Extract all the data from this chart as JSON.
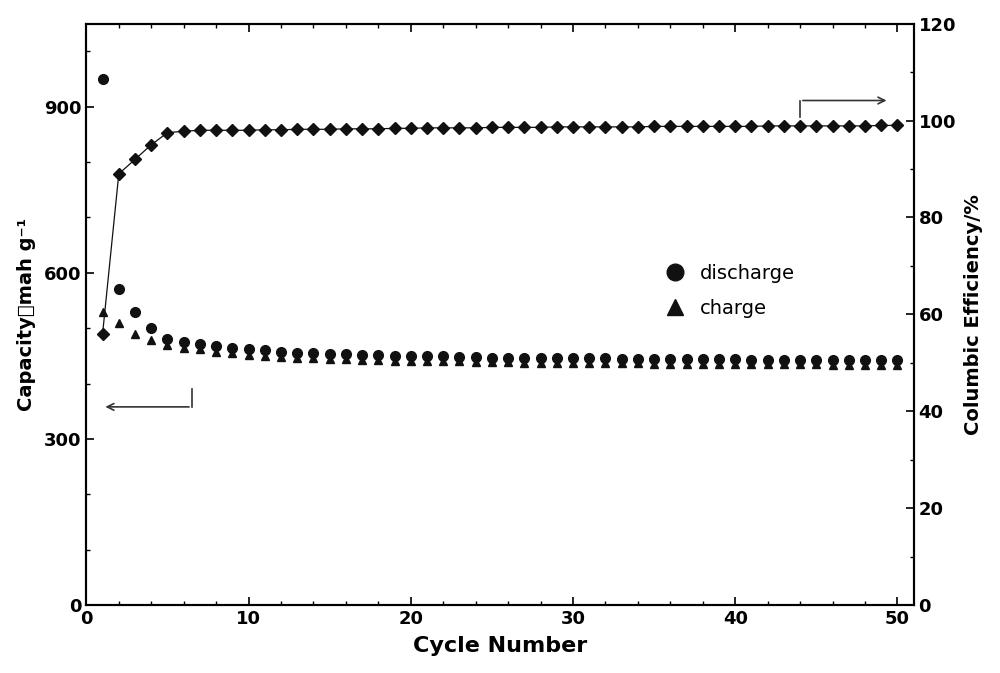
{
  "xlabel": "Cycle Number",
  "ylabel_left": "Capacity(mah g⁻¹",
  "ylabel_right": "Columbic Efficiency/%",
  "xlim": [
    0,
    51
  ],
  "ylim_left": [
    0,
    1050
  ],
  "ylim_right": [
    0,
    120
  ],
  "xticks": [
    0,
    10,
    20,
    30,
    40,
    50
  ],
  "yticks_left": [
    0,
    300,
    600,
    900
  ],
  "yticks_right": [
    0,
    20,
    40,
    60,
    80,
    100,
    120
  ],
  "discharge_cycles": [
    1,
    2,
    3,
    4,
    5,
    6,
    7,
    8,
    9,
    10,
    11,
    12,
    13,
    14,
    15,
    16,
    17,
    18,
    19,
    20,
    21,
    22,
    23,
    24,
    25,
    26,
    27,
    28,
    29,
    30,
    31,
    32,
    33,
    34,
    35,
    36,
    37,
    38,
    39,
    40,
    41,
    42,
    43,
    44,
    45,
    46,
    47,
    48,
    49,
    50
  ],
  "discharge_capacity": [
    950,
    570,
    530,
    500,
    480,
    475,
    472,
    468,
    465,
    462,
    460,
    458,
    456,
    455,
    454,
    453,
    452,
    451,
    450,
    450,
    449,
    449,
    448,
    448,
    447,
    447,
    447,
    447,
    446,
    446,
    446,
    446,
    445,
    445,
    445,
    445,
    444,
    444,
    444,
    444,
    443,
    443,
    443,
    443,
    443,
    442,
    442,
    442,
    442,
    442
  ],
  "charge_cycles": [
    1,
    2,
    3,
    4,
    5,
    6,
    7,
    8,
    9,
    10,
    11,
    12,
    13,
    14,
    15,
    16,
    17,
    18,
    19,
    20,
    21,
    22,
    23,
    24,
    25,
    26,
    27,
    28,
    29,
    30,
    31,
    32,
    33,
    34,
    35,
    36,
    37,
    38,
    39,
    40,
    41,
    42,
    43,
    44,
    45,
    46,
    47,
    48,
    49,
    50
  ],
  "charge_capacity": [
    530,
    510,
    490,
    478,
    470,
    465,
    462,
    458,
    455,
    452,
    450,
    448,
    447,
    446,
    445,
    444,
    443,
    442,
    441,
    441,
    440,
    440,
    440,
    439,
    439,
    439,
    438,
    438,
    438,
    438,
    437,
    437,
    437,
    437,
    436,
    436,
    436,
    436,
    436,
    436,
    435,
    435,
    435,
    435,
    435,
    434,
    434,
    434,
    434,
    434
  ],
  "efficiency_cycles": [
    1,
    2,
    3,
    4,
    5,
    6,
    7,
    8,
    9,
    10,
    11,
    12,
    13,
    14,
    15,
    16,
    17,
    18,
    19,
    20,
    21,
    22,
    23,
    24,
    25,
    26,
    27,
    28,
    29,
    30,
    31,
    32,
    33,
    34,
    35,
    36,
    37,
    38,
    39,
    40,
    41,
    42,
    43,
    44,
    45,
    46,
    47,
    48,
    49,
    50
  ],
  "efficiency": [
    56,
    89,
    92,
    95,
    97.5,
    97.8,
    98.0,
    98.0,
    98.0,
    98.0,
    98.1,
    98.1,
    98.2,
    98.2,
    98.2,
    98.3,
    98.3,
    98.3,
    98.4,
    98.4,
    98.5,
    98.5,
    98.5,
    98.5,
    98.6,
    98.6,
    98.6,
    98.6,
    98.7,
    98.7,
    98.7,
    98.7,
    98.7,
    98.7,
    98.8,
    98.8,
    98.8,
    98.8,
    98.8,
    98.8,
    98.8,
    98.9,
    98.9,
    98.9,
    98.9,
    98.9,
    98.9,
    98.9,
    99.0,
    99.0
  ],
  "marker_color": "#111111",
  "line_color": "#555555",
  "bg_color": "#ffffff",
  "legend_discharge_label": "discharge",
  "legend_charge_label": "charge"
}
